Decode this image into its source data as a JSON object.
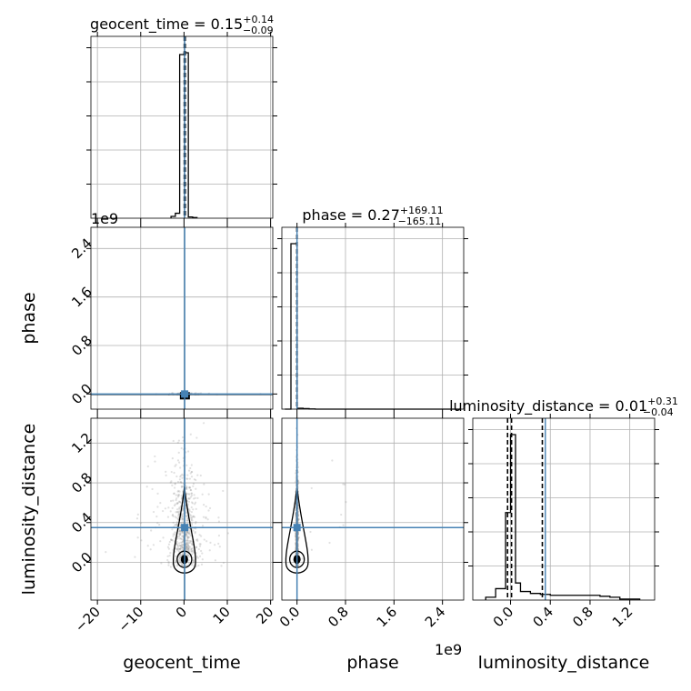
{
  "colors": {
    "truth": "#4682b4",
    "hist": "#000000",
    "grid": "#b0b0b0",
    "points": "#888888"
  },
  "chart_data": {
    "type": "corner",
    "parameters": [
      "geocent_time",
      "phase",
      "luminosity_distance"
    ],
    "grid": true,
    "titles": [
      {
        "name": "geocent_time",
        "median": "0.15",
        "plus": "+0.14",
        "minus": "−0.09"
      },
      {
        "name": "phase",
        "median": "0.27",
        "plus": "+169.11",
        "minus": "−165.11"
      },
      {
        "name": "luminosity_distance",
        "median": "0.01",
        "plus": "+0.31",
        "minus": "−0.04"
      }
    ],
    "axis_labels": {
      "x": [
        "geocent_time",
        "phase",
        "luminosity_distance"
      ],
      "y": [
        "phase",
        "luminosity_distance"
      ]
    },
    "offset_texts": {
      "phase_row": "1e9",
      "phase_col": "1e9"
    },
    "ranges": {
      "geocent_time": [
        -21.5,
        20.5
      ],
      "phase": [
        -0.25,
        2.75
      ],
      "luminosity_distance": [
        -0.38,
        1.45
      ]
    },
    "ticks": {
      "geocent_time": {
        "values": [
          -20,
          -10,
          0,
          10,
          20
        ],
        "labels": [
          "−20",
          "−10",
          "0",
          "10",
          "20"
        ]
      },
      "phase": {
        "values": [
          0,
          0.8,
          1.6,
          2.4
        ],
        "labels": [
          "0.0",
          "0.8",
          "1.6",
          "2.4"
        ]
      },
      "luminosity_distance": {
        "values": [
          0,
          0.4,
          0.8,
          1.2
        ],
        "labels": [
          "0.0",
          "0.4",
          "0.8",
          "1.2"
        ]
      }
    },
    "truths": {
      "geocent_time": 0.15,
      "phase": 0.0,
      "luminosity_distance": 0.35
    },
    "quantile_lines": {
      "geocent_time": [
        0.06,
        0.15,
        0.29
      ],
      "phase": [
        -0.0017,
        0.0,
        0.0017
      ],
      "luminosity_distance": [
        -0.03,
        0.01,
        0.32
      ]
    },
    "histograms": {
      "geocent_time": {
        "edges": [
          -3,
          -2,
          -1,
          0,
          1,
          2,
          3
        ],
        "counts": [
          0.3,
          0.8,
          26.5,
          26.8,
          0.2,
          0.1
        ]
      },
      "phase": {
        "edges": [
          -0.2,
          -0.1,
          0.0,
          0.1,
          0.2,
          0.3,
          0.5,
          1.0,
          2.0,
          2.7
        ],
        "counts": [
          0.0,
          9.1,
          0.05,
          0.03,
          0.01,
          0.0,
          0.0,
          0.0,
          0.0
        ]
      },
      "luminosity_distance": {
        "edges": [
          -0.25,
          -0.15,
          -0.05,
          0.0,
          0.05,
          0.1,
          0.2,
          0.3,
          0.4,
          0.6,
          0.8,
          0.9,
          1.0,
          1.1,
          1.2,
          1.3
        ],
        "counts": [
          0.3,
          1.2,
          9.2,
          17.4,
          1.8,
          0.9,
          0.7,
          0.6,
          0.5,
          0.5,
          0.5,
          0.4,
          0.3,
          0.1,
          0.1
        ]
      }
    }
  }
}
